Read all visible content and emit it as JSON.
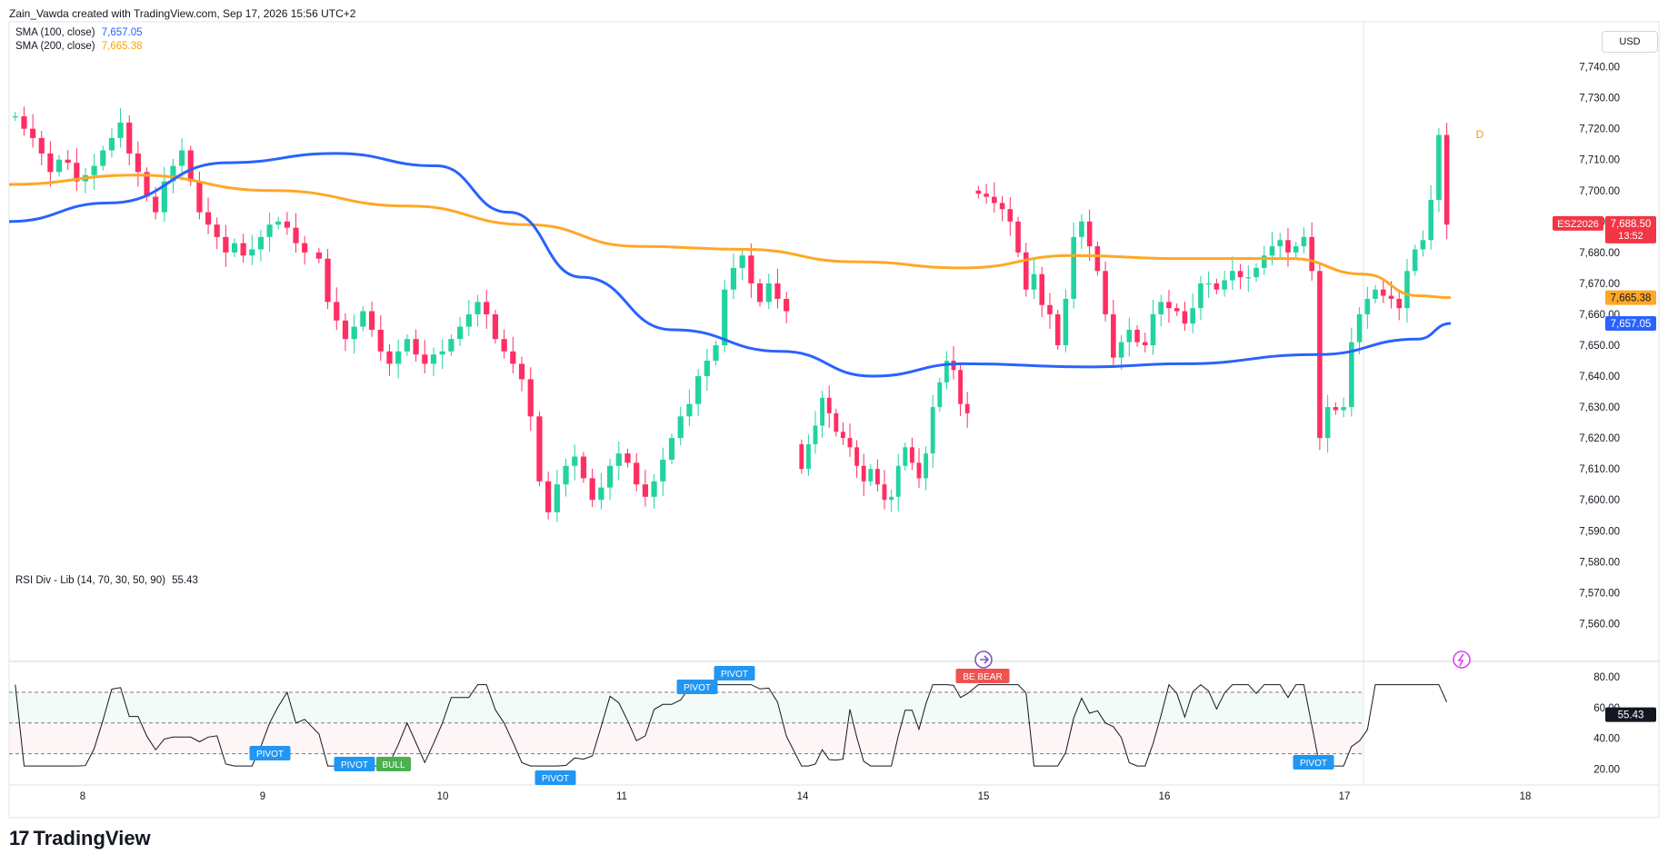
{
  "header": {
    "attribution": "Zain_Vawda created with TradingView.com, Sep 17, 2026 15:56 UTC+2"
  },
  "legend": {
    "sma100_label": "SMA (100, close)",
    "sma100_value": "7,657.05",
    "sma200_label": "SMA (200, close)",
    "sma200_value": "7,665.38",
    "rsi_label": "RSI Div - Lib (14, 70, 30, 50, 90)",
    "rsi_value": "55.43"
  },
  "currency_button": "USD",
  "symbol_tag": {
    "symbol": "ESZ2026",
    "price": "7,688.50",
    "countdown": "13:52"
  },
  "footer_logo": "TradingView",
  "session_marker": "D",
  "colors": {
    "up": "#089981",
    "up_fill": "#22d3a0",
    "down": "#f23645",
    "down_fill": "#ff2e63",
    "sma100": "#2962ff",
    "sma200": "#ffa726",
    "rsi_line": "#131722",
    "pivot_bg": "#2196f3",
    "bull_bg": "#4caf50",
    "bear_bg": "#ef5350"
  },
  "chart_data": [
    {
      "type": "candlestick",
      "title": "ESZ2026",
      "x_tick_labels": [
        "8",
        "9",
        "10",
        "11",
        "14",
        "15",
        "16",
        "17",
        "18"
      ],
      "y_tick_labels": [
        "7,740.00",
        "7,730.00",
        "7,720.00",
        "7,710.00",
        "7,700.00",
        "7,690.00",
        "7,680.00",
        "7,670.00",
        "7,660.00",
        "7,650.00",
        "7,640.00",
        "7,630.00",
        "7,620.00",
        "7,610.00",
        "7,600.00",
        "7,590.00",
        "7,580.00",
        "7,570.00",
        "7,560.00"
      ],
      "ylim": [
        7556,
        7744
      ],
      "grid": false,
      "price_labels": [
        {
          "name": "SMA 200",
          "value": "7,665.38"
        },
        {
          "name": "SMA 100",
          "value": "7,657.05"
        },
        {
          "name": "Last",
          "value": "7,688.50"
        }
      ],
      "segments": [
        {
          "start": 7724,
          "closes": [
            7724,
            7720,
            7717,
            7712,
            7706,
            7710,
            7709,
            7703,
            7705,
            7708,
            7713,
            7717,
            7722,
            7712,
            7706,
            7698,
            7693,
            7703,
            7708,
            7713,
            7703,
            7693,
            7689,
            7685,
            7680,
            7683,
            7679,
            7681,
            7685,
            7689,
            7690,
            7688,
            7683,
            7680
          ]
        },
        {
          "start": 7680,
          "closes": [
            7678,
            7664,
            7658,
            7652,
            7656,
            7661,
            7655,
            7648,
            7644,
            7648,
            7652,
            7647,
            7644,
            7647,
            7648,
            7652,
            7656,
            7660,
            7664,
            7660,
            7652,
            7648,
            7644,
            7639,
            7627,
            7606,
            7596,
            7605,
            7611,
            7614,
            7607,
            7600,
            7604,
            7611,
            7615,
            7612,
            7605,
            7601,
            7606,
            7613,
            7620,
            7627,
            7631,
            7640,
            7645,
            7650,
            7668,
            7675,
            7679,
            7670,
            7664,
            7670,
            7665,
            7661
          ]
        },
        {
          "start": 7618,
          "closes": [
            7610,
            7618,
            7624,
            7633,
            7628,
            7622,
            7620,
            7617,
            7611,
            7606,
            7610,
            7605,
            7600,
            7601,
            7611,
            7617,
            7612,
            7607,
            7615,
            7630,
            7638,
            7645,
            7642,
            7631,
            7628
          ]
        },
        {
          "start": 7700,
          "closes": [
            7699,
            7698,
            7696,
            7694,
            7690,
            7680,
            7668,
            7673,
            7663,
            7660,
            7650,
            7665,
            7685,
            7690,
            7682,
            7674,
            7660,
            7646,
            7651,
            7655,
            7651,
            7650,
            7660,
            7664,
            7662,
            7661,
            7657,
            7662,
            7670,
            7670,
            7668,
            7671,
            7674,
            7672,
            7672,
            7675,
            7679,
            7682,
            7684,
            7680,
            7682,
            7685,
            7674,
            7620,
            7630,
            7629,
            7630,
            7651,
            7660,
            7665,
            7668,
            7666,
            7665,
            7662,
            7674,
            7681,
            7684,
            7697,
            7718,
            7689
          ]
        }
      ],
      "sma100_value": 7657.05,
      "sma200_value": 7665.38
    },
    {
      "type": "line",
      "title": "RSI Div - Lib (14, 70, 30, 50, 90)",
      "y_tick_labels": [
        "80.00",
        "60.00",
        "40.00",
        "20.00"
      ],
      "ylim": [
        12,
        86
      ],
      "levels": [
        70,
        50,
        30
      ],
      "current_value": "55.43",
      "signals": [
        {
          "label": "PIVOT"
        },
        {
          "label": "PIVOT"
        },
        {
          "label": "BULL"
        },
        {
          "label": "PIVOT"
        },
        {
          "label": "PIVOT"
        },
        {
          "label": "PIVOT"
        },
        {
          "label": "BE BEAR"
        },
        {
          "label": "PIVOT"
        }
      ]
    }
  ]
}
